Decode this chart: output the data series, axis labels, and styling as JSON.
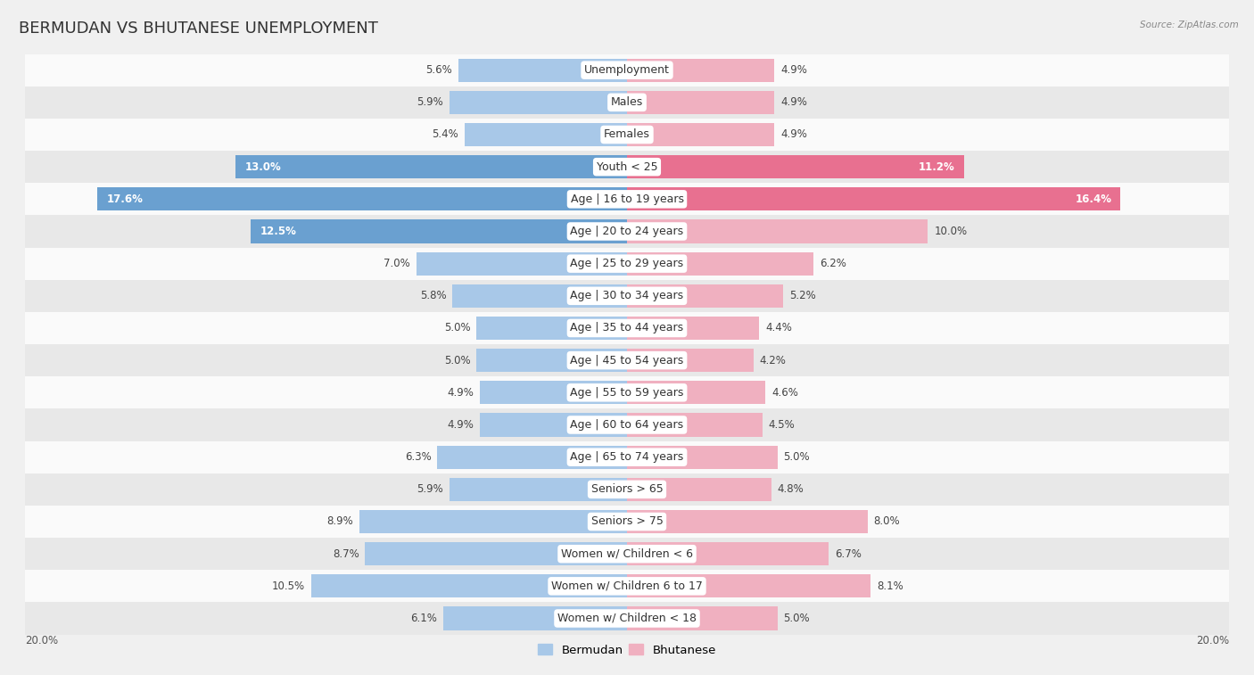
{
  "title": "BERMUDAN VS BHUTANESE UNEMPLOYMENT",
  "source": "Source: ZipAtlas.com",
  "categories": [
    "Unemployment",
    "Males",
    "Females",
    "Youth < 25",
    "Age | 16 to 19 years",
    "Age | 20 to 24 years",
    "Age | 25 to 29 years",
    "Age | 30 to 34 years",
    "Age | 35 to 44 years",
    "Age | 45 to 54 years",
    "Age | 55 to 59 years",
    "Age | 60 to 64 years",
    "Age | 65 to 74 years",
    "Seniors > 65",
    "Seniors > 75",
    "Women w/ Children < 6",
    "Women w/ Children 6 to 17",
    "Women w/ Children < 18"
  ],
  "bermudan": [
    5.6,
    5.9,
    5.4,
    13.0,
    17.6,
    12.5,
    7.0,
    5.8,
    5.0,
    5.0,
    4.9,
    4.9,
    6.3,
    5.9,
    8.9,
    8.7,
    10.5,
    6.1
  ],
  "bhutanese": [
    4.9,
    4.9,
    4.9,
    11.2,
    16.4,
    10.0,
    6.2,
    5.2,
    4.4,
    4.2,
    4.6,
    4.5,
    5.0,
    4.8,
    8.0,
    6.7,
    8.1,
    5.0
  ],
  "bermudan_color_normal": "#a8c8e8",
  "bermudan_color_large": "#6aa0d0",
  "bhutanese_color_normal": "#f0b0c0",
  "bhutanese_color_large": "#e87090",
  "large_threshold": 11.0,
  "bar_height": 0.72,
  "xlim": 20,
  "legend_bermudan": "Bermudan",
  "legend_bhutanese": "Bhutanese",
  "background_color": "#f0f0f0",
  "row_color_light": "#fafafa",
  "row_color_dark": "#e8e8e8",
  "title_fontsize": 13,
  "label_fontsize": 9,
  "value_fontsize": 8.5
}
